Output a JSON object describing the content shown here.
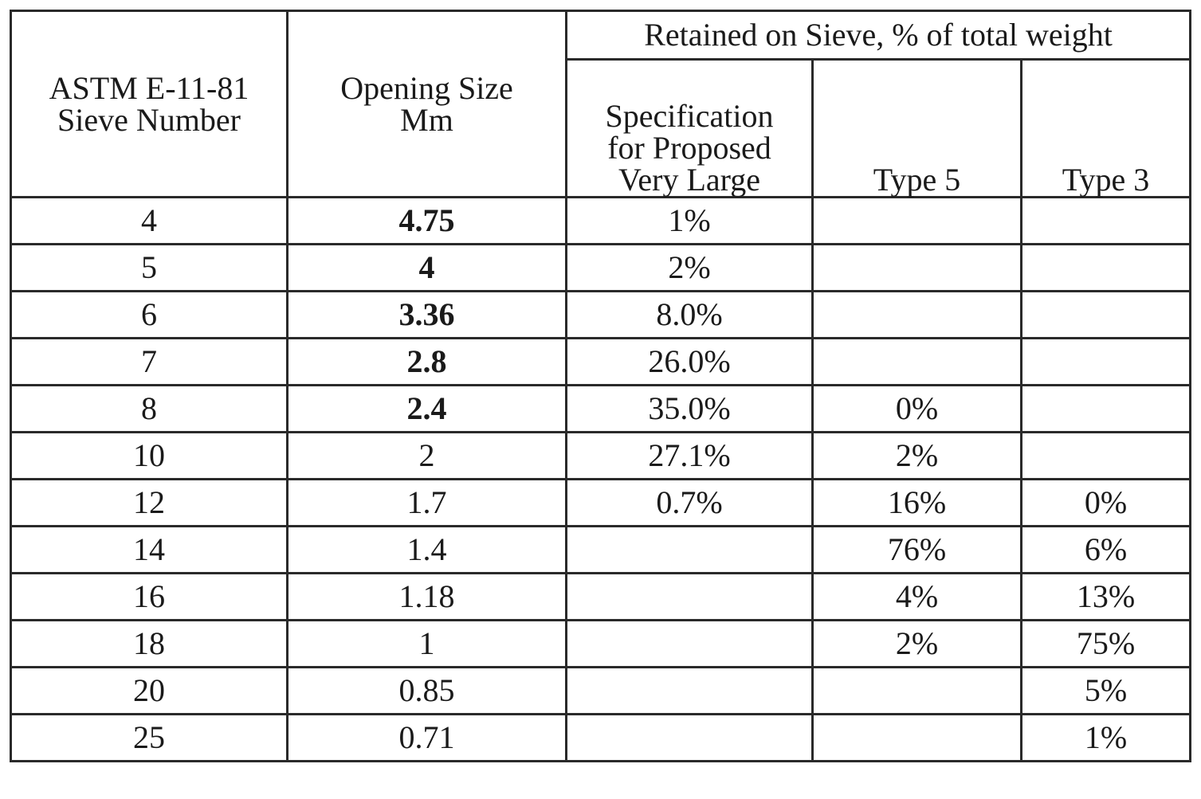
{
  "table": {
    "headers": {
      "sieve_number": [
        "ASTM E-11-81",
        "Sieve Number"
      ],
      "opening_size": [
        "Opening Size",
        "Mm"
      ],
      "group": "Retained on Sieve, % of total weight",
      "specification": [
        "Specification",
        "for Proposed",
        "Very Large"
      ],
      "type5": "Type 5",
      "type3": "Type 3"
    },
    "rows": [
      {
        "sieve": "4",
        "opening": "4.75",
        "opening_bold": true,
        "spec": "1%",
        "type5": "",
        "type3": ""
      },
      {
        "sieve": "5",
        "opening": "4",
        "opening_bold": true,
        "spec": "2%",
        "type5": "",
        "type3": ""
      },
      {
        "sieve": "6",
        "opening": "3.36",
        "opening_bold": true,
        "spec": "8.0%",
        "type5": "",
        "type3": ""
      },
      {
        "sieve": "7",
        "opening": "2.8",
        "opening_bold": true,
        "spec": "26.0%",
        "type5": "",
        "type3": ""
      },
      {
        "sieve": "8",
        "opening": "2.4",
        "opening_bold": true,
        "spec": "35.0%",
        "type5": "0%",
        "type3": ""
      },
      {
        "sieve": "10",
        "opening": "2",
        "opening_bold": false,
        "spec": "27.1%",
        "type5": "2%",
        "type3": ""
      },
      {
        "sieve": "12",
        "opening": "1.7",
        "opening_bold": false,
        "spec": "0.7%",
        "type5": "16%",
        "type3": "0%"
      },
      {
        "sieve": "14",
        "opening": "1.4",
        "opening_bold": false,
        "spec": "",
        "type5": "76%",
        "type3": "6%"
      },
      {
        "sieve": "16",
        "opening": "1.18",
        "opening_bold": false,
        "spec": "",
        "type5": "4%",
        "type3": "13%"
      },
      {
        "sieve": "18",
        "opening": "1",
        "opening_bold": false,
        "spec": "",
        "type5": "2%",
        "type3": "75%"
      },
      {
        "sieve": "20",
        "opening": "0.85",
        "opening_bold": false,
        "spec": "",
        "type5": "",
        "type3": "5%"
      },
      {
        "sieve": "25",
        "opening": "0.71",
        "opening_bold": false,
        "spec": "",
        "type5": "",
        "type3": "1%"
      }
    ]
  }
}
